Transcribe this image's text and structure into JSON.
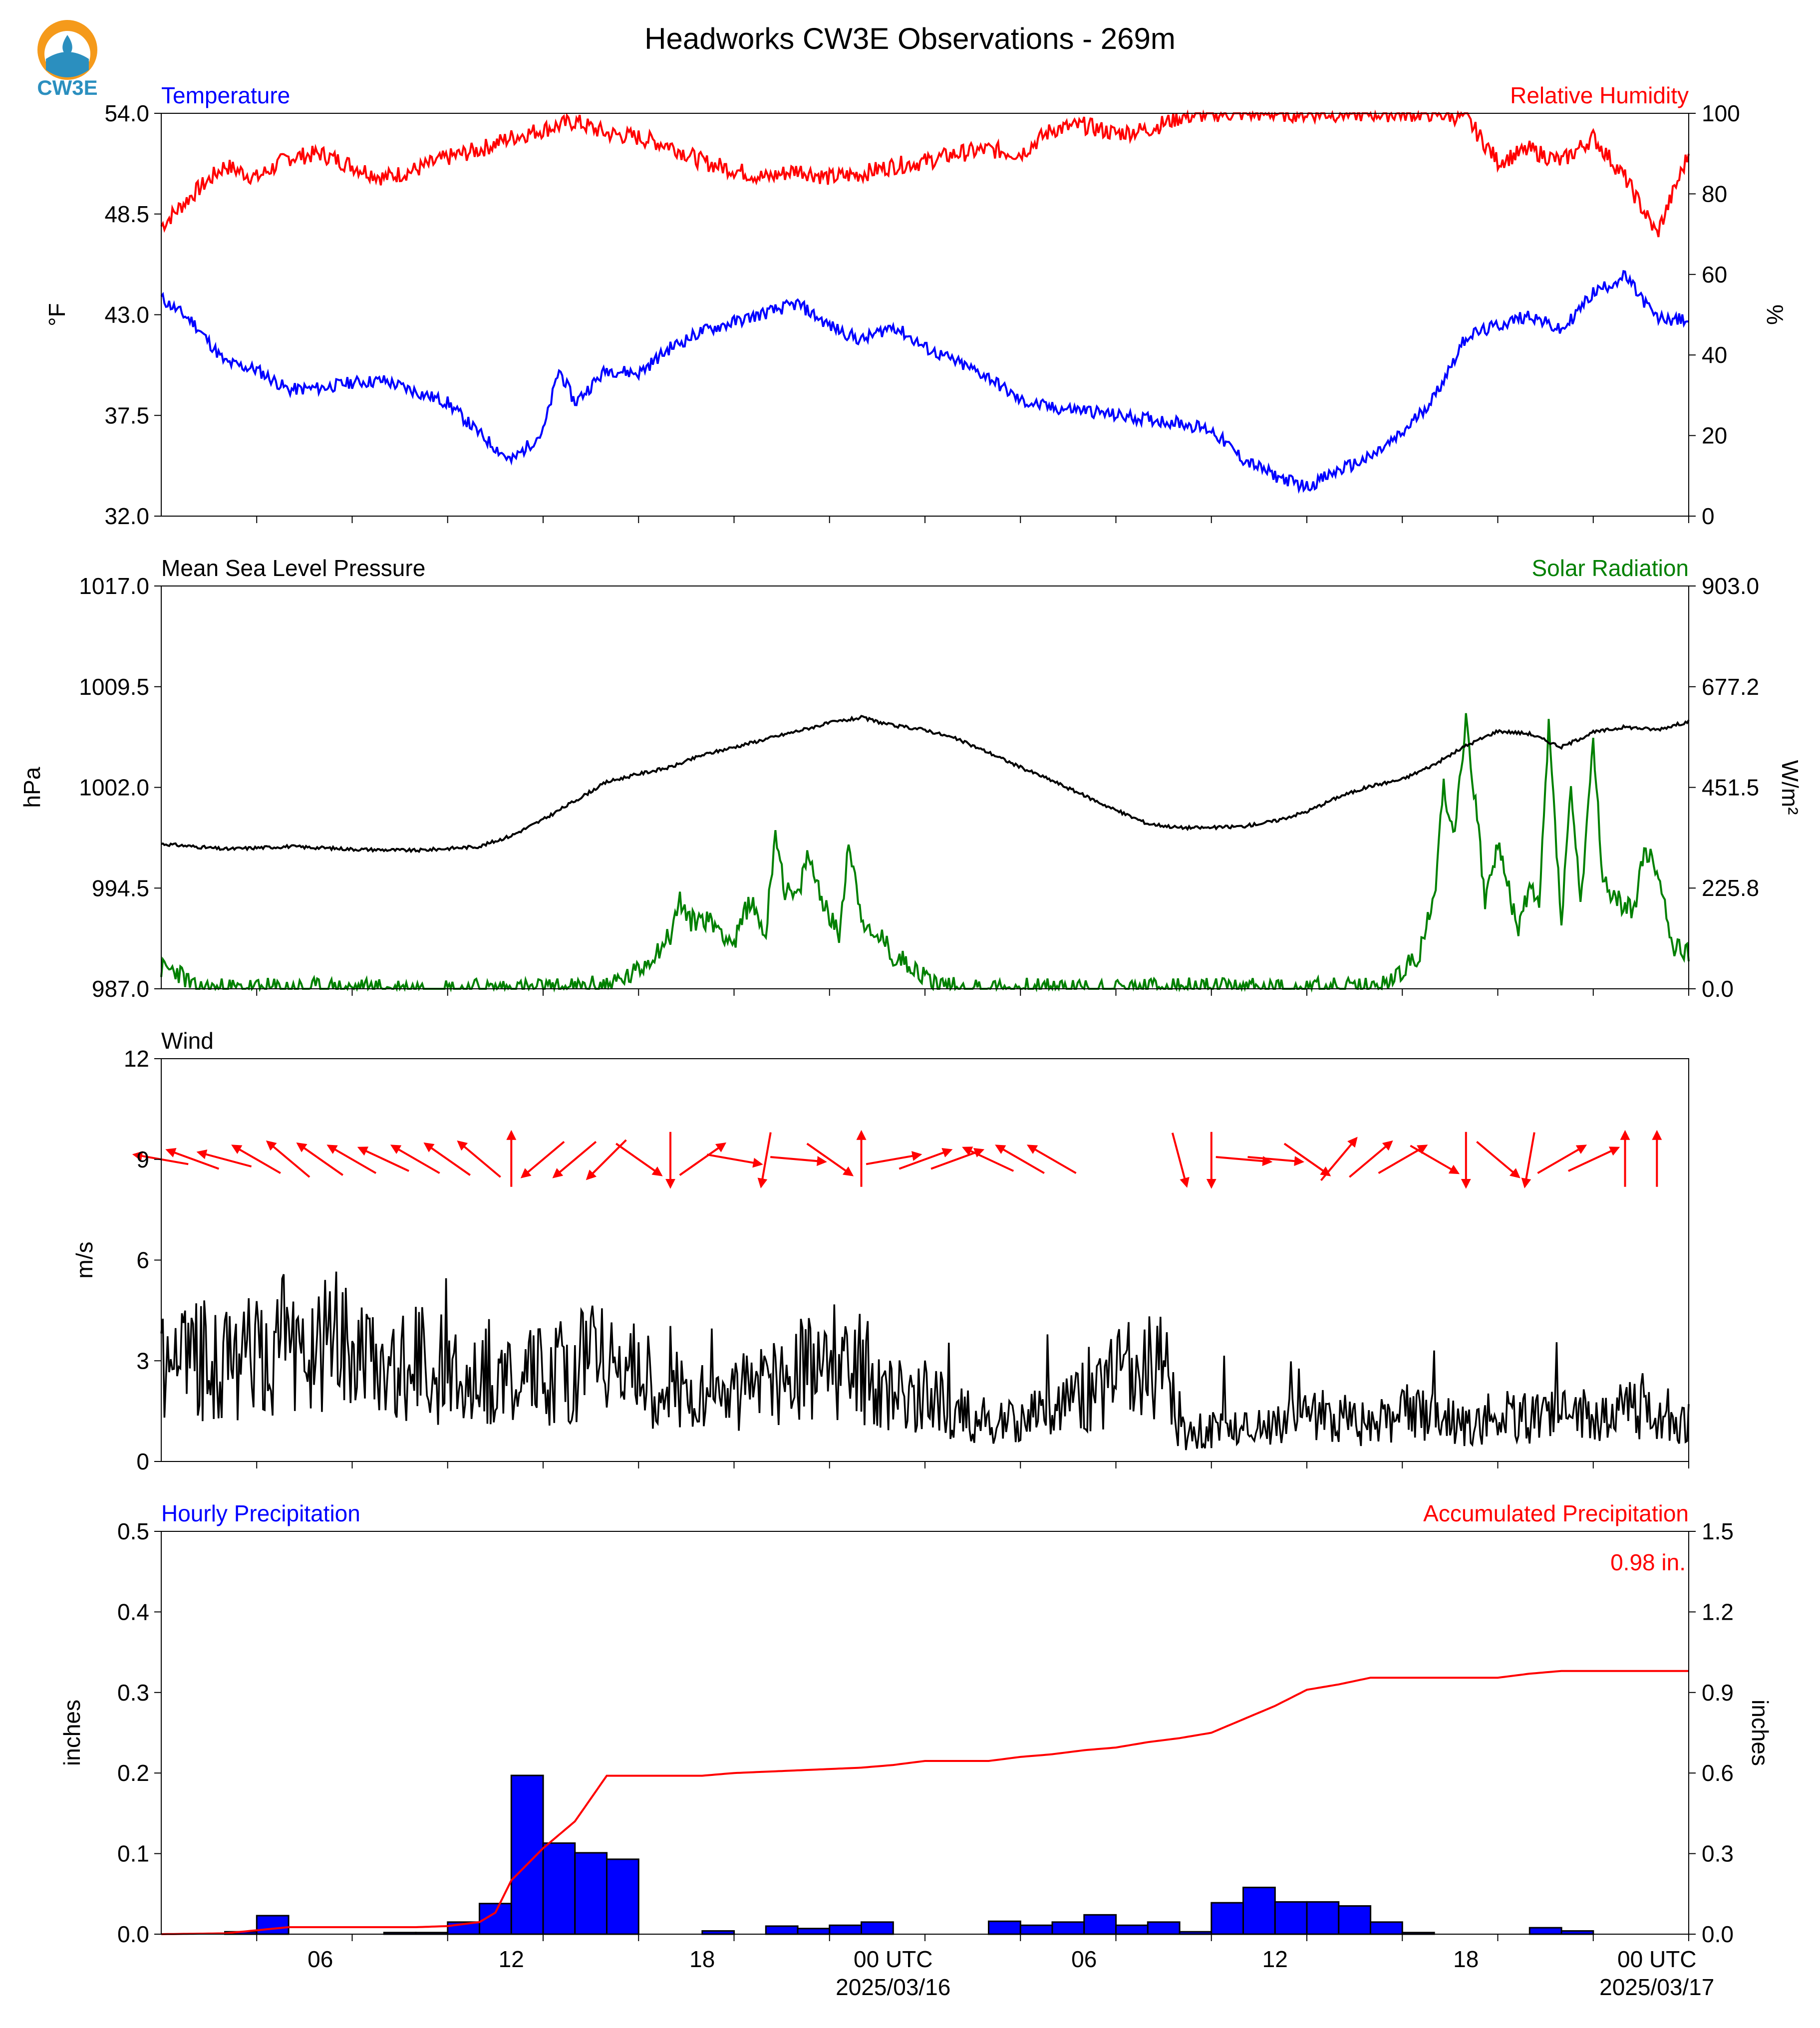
{
  "figure": {
    "title": "Headworks CW3E Observations - 269m",
    "logo_text": "CW3E"
  },
  "colors": {
    "temperature": "#0000ff",
    "humidity": "#ff0000",
    "pressure": "#000000",
    "solar": "#008000",
    "wind_speed": "#000000",
    "wind_arrows": "#ff0000",
    "hourly_bars": "#0000ff",
    "accum_line": "#ff0000",
    "logo_orange": "#f59a1b",
    "logo_blue": "#2b8fbf"
  },
  "time_axis": {
    "range_hours": [
      0,
      48
    ],
    "ticks": [
      3,
      6,
      9,
      12,
      15,
      18,
      21,
      24,
      27,
      30,
      33,
      36,
      39,
      42,
      45,
      48
    ],
    "labels": [
      {
        "hour": 5,
        "text": "06"
      },
      {
        "hour": 11,
        "text": "12"
      },
      {
        "hour": 17,
        "text": "18"
      },
      {
        "hour": 23,
        "text": "00 UTC",
        "sub": "2025/03/16"
      },
      {
        "hour": 29,
        "text": "06"
      },
      {
        "hour": 35,
        "text": "12"
      },
      {
        "hour": 41,
        "text": "18"
      },
      {
        "hour": 47,
        "text": "00 UTC",
        "sub": "2025/03/17"
      }
    ]
  },
  "panels": {
    "temp_rh": {
      "left_title": "Temperature",
      "right_title": "Relative Humidity",
      "ylabel_left": "°F",
      "ylabel_right": "%",
      "yticks_left": [
        "32.0",
        "37.5",
        "43.0",
        "48.5",
        "54.0"
      ],
      "yticks_right": [
        "0",
        "20",
        "40",
        "60",
        "80",
        "100"
      ]
    },
    "pres_solar": {
      "left_title": "Mean Sea Level Pressure",
      "right_title": "Solar Radiation",
      "ylabel_left": "hPa",
      "ylabel_right": "W/m²",
      "yticks_left": [
        "987.0",
        "994.5",
        "1002.0",
        "1009.5",
        "1017.0"
      ],
      "yticks_right": [
        "0.0",
        "225.8",
        "451.5",
        "677.2",
        "903.0"
      ]
    },
    "wind": {
      "left_title": "Wind",
      "ylabel_left": "m/s",
      "yticks_left": [
        "0",
        "3",
        "6",
        "9",
        "12"
      ]
    },
    "precip": {
      "left_title": "Hourly Precipitation",
      "right_title": "Accumulated Precipitation",
      "ylabel_left": "inches",
      "ylabel_right": "inches",
      "yticks_left": [
        "0.0",
        "0.1",
        "0.2",
        "0.3",
        "0.4",
        "0.5"
      ],
      "yticks_right": [
        "0.0",
        "0.3",
        "0.6",
        "0.9",
        "1.2",
        "1.5"
      ],
      "total_label": "0.98 in."
    }
  },
  "chart_data": [
    {
      "type": "line",
      "title": "Temperature",
      "ylabel": "°F",
      "ylim": [
        32.0,
        54.0
      ],
      "xlim_hours": [
        0,
        48
      ],
      "series": [
        {
          "name": "Temperature",
          "x": [
            0,
            1,
            2,
            3,
            4,
            5,
            6,
            7,
            8,
            9,
            10,
            11,
            12,
            12.5,
            13,
            14,
            15,
            16,
            17,
            18,
            19,
            20,
            21,
            22,
            23,
            24,
            25,
            26,
            27,
            28,
            29,
            30,
            31,
            32,
            33,
            34,
            35,
            36,
            37,
            38,
            39,
            40,
            41,
            42,
            43,
            44,
            45,
            46,
            47,
            48
          ],
          "values": [
            43.9,
            42.6,
            40.4,
            40.0,
            38.9,
            39.0,
            39.3,
            39.4,
            38.8,
            38.2,
            36.5,
            35.0,
            36.6,
            40.0,
            38.2,
            40.0,
            39.8,
            41.2,
            42.1,
            42.6,
            43.1,
            43.6,
            42.4,
            41.6,
            42.4,
            41.2,
            40.4,
            39.6,
            38.3,
            37.9,
            37.8,
            37.5,
            37.3,
            37.1,
            36.7,
            35.1,
            34.2,
            33.6,
            34.5,
            35.2,
            36.5,
            38.5,
            41.8,
            42.4,
            43.0,
            42.1,
            44.2,
            45.1,
            42.8,
            42.7
          ]
        }
      ]
    },
    {
      "type": "line",
      "title": "Relative Humidity",
      "ylabel": "%",
      "ylim": [
        0,
        100
      ],
      "xlim_hours": [
        0,
        48
      ],
      "series": [
        {
          "name": "Relative Humidity",
          "x": [
            0,
            1,
            2,
            3,
            4,
            5,
            6,
            7,
            8,
            9,
            10,
            11,
            12,
            13,
            14,
            15,
            16,
            17,
            18,
            19,
            20,
            21,
            22,
            23,
            24,
            25,
            26,
            27,
            28,
            29,
            30,
            31,
            32,
            33,
            34,
            35,
            36,
            37,
            38,
            39,
            40,
            41,
            42,
            43,
            44,
            45,
            46,
            47,
            48
          ],
          "values": [
            72,
            80,
            87,
            84,
            89,
            90,
            87,
            84,
            86,
            89,
            91,
            94,
            96,
            98,
            95,
            94,
            92,
            88,
            86,
            84,
            86,
            84,
            85,
            87,
            88,
            90,
            91,
            90,
            96,
            97,
            95,
            96,
            99,
            100,
            100,
            100,
            100,
            100,
            100,
            100,
            100,
            99,
            88,
            91,
            88,
            94,
            84,
            70,
            90
          ]
        }
      ]
    },
    {
      "type": "line",
      "title": "Mean Sea Level Pressure",
      "ylabel": "hPa",
      "ylim": [
        987.0,
        1017.0
      ],
      "xlim_hours": [
        0,
        48
      ],
      "series": [
        {
          "name": "Mean Sea Level Pressure",
          "x": [
            0,
            2,
            4,
            6,
            8,
            10,
            11,
            12,
            13,
            14,
            15,
            16,
            17,
            18,
            19,
            20,
            21,
            22,
            23,
            24,
            25,
            26,
            27,
            28,
            29,
            30,
            31,
            32,
            33,
            34,
            35,
            36,
            37,
            38,
            39,
            40,
            41,
            42,
            43,
            44,
            45,
            46,
            47,
            48
          ],
          "values": [
            997.8,
            997.4,
            997.6,
            997.4,
            997.3,
            997.6,
            998.4,
            999.6,
            1001.0,
            1002.4,
            1003.0,
            1003.5,
            1004.4,
            1005.0,
            1005.6,
            1006.2,
            1006.8,
            1007.2,
            1006.6,
            1006.3,
            1005.6,
            1004.6,
            1003.5,
            1002.5,
            1001.4,
            1000.3,
            999.3,
            999.0,
            999.0,
            999.1,
            999.5,
            1000.2,
            1001.3,
            1002.1,
            1002.6,
            1003.7,
            1005.1,
            1006.2,
            1006.0,
            1005.0,
            1006.1,
            1006.5,
            1006.3,
            1006.9
          ]
        }
      ]
    },
    {
      "type": "line",
      "title": "Solar Radiation",
      "ylabel": "W/m²",
      "ylim": [
        0.0,
        903.0
      ],
      "xlim_hours": [
        0,
        48
      ],
      "series": [
        {
          "name": "Solar Radiation",
          "x": [
            0,
            0.5,
            0.8,
            1,
            13,
            14,
            14.5,
            15,
            15.5,
            16,
            16.3,
            16.6,
            17,
            17.5,
            18,
            18.5,
            19,
            19.3,
            19.6,
            20,
            20.3,
            20.6,
            21,
            21.3,
            21.6,
            22,
            22.3,
            22.6,
            23,
            23.5,
            24,
            24.5,
            25,
            26,
            38,
            38.5,
            39,
            39.5,
            40,
            40.3,
            40.6,
            41,
            41.3,
            41.6,
            42,
            42.3,
            42.6,
            43,
            43.3,
            43.6,
            44,
            44.3,
            44.6,
            45,
            45.3,
            45.6,
            46,
            46.3,
            46.6,
            47,
            47.5,
            48
          ],
          "values": [
            45,
            40,
            20,
            0,
            0,
            10,
            20,
            40,
            80,
            120,
            200,
            150,
            160,
            140,
            100,
            200,
            120,
            360,
            220,
            200,
            300,
            240,
            160,
            120,
            330,
            170,
            110,
            120,
            70,
            60,
            25,
            10,
            0,
            0,
            0,
            10,
            40,
            70,
            200,
            460,
            340,
            600,
            420,
            200,
            320,
            240,
            130,
            230,
            180,
            590,
            150,
            450,
            190,
            540,
            250,
            200,
            190,
            180,
            310,
            270,
            100,
            80
          ]
        }
      ]
    },
    {
      "type": "line",
      "title": "Wind",
      "ylabel": "m/s",
      "ylim": [
        0,
        12
      ],
      "xlim_hours": [
        0,
        48
      ],
      "series": [
        {
          "name": "Wind speed",
          "x": [
            0,
            1,
            2,
            3,
            4,
            5,
            6,
            7,
            8,
            9,
            10,
            11,
            12,
            13,
            14,
            15,
            16,
            17,
            18,
            19,
            20,
            21,
            22,
            23,
            24,
            25,
            26,
            27,
            28,
            29,
            30,
            31,
            31.5,
            32,
            33,
            34,
            35,
            36,
            37,
            38,
            39,
            40,
            41,
            42,
            43,
            44,
            45,
            46,
            47,
            48
          ],
          "values": [
            2.8,
            3.0,
            2.6,
            3.2,
            3.3,
            3.4,
            3.0,
            2.6,
            2.8,
            2.5,
            2.6,
            2.3,
            2.4,
            2.6,
            2.8,
            2.4,
            2.0,
            1.8,
            1.8,
            2.3,
            2.5,
            2.8,
            2.6,
            2.0,
            1.8,
            1.4,
            1.2,
            1.0,
            1.6,
            2.0,
            2.4,
            2.6,
            2.7,
            0.8,
            0.9,
            1.0,
            1.1,
            1.3,
            1.2,
            1.0,
            1.4,
            1.2,
            1.0,
            1.3,
            1.2,
            1.4,
            1.3,
            1.5,
            1.2,
            1.0
          ]
        },
        {
          "name": "Wind direction (hourly arrows, direction toward, degrees clockwise from north)",
          "x": [
            0,
            1,
            2,
            3,
            4,
            5,
            6,
            7,
            8,
            9,
            10,
            11,
            12,
            13,
            14,
            15,
            16,
            17,
            18,
            19,
            20,
            21,
            22,
            23,
            24,
            25,
            26,
            27,
            28,
            29,
            30,
            31,
            32,
            33,
            34,
            35,
            36,
            37,
            38,
            39,
            40,
            41,
            42,
            43,
            44,
            45,
            46,
            47,
            48
          ],
          "values": [
            280,
            290,
            285,
            300,
            310,
            305,
            300,
            295,
            300,
            305,
            310,
            0,
            230,
            230,
            225,
            125,
            180,
            55,
            100,
            190,
            95,
            125,
            0,
            80,
            70,
            70,
            295,
            300,
            300,
            null,
            null,
            null,
            165,
            180,
            95,
            95,
            125,
            40,
            50,
            60,
            120,
            180,
            130,
            190,
            60,
            65,
            0,
            0,
            null
          ]
        }
      ]
    },
    {
      "type": "bar",
      "title": "Hourly Precipitation",
      "ylabel": "inches",
      "ylim": [
        0,
        0.5
      ],
      "categories_hours": [
        2,
        3,
        7,
        8,
        9,
        10,
        11,
        12,
        13,
        14,
        17,
        19,
        20,
        21,
        22,
        26,
        27,
        28,
        29,
        30,
        31,
        32,
        33,
        34,
        35,
        36,
        37,
        38,
        39,
        43,
        44
      ],
      "values": [
        0.003,
        0.023,
        0.002,
        0.002,
        0.015,
        0.038,
        0.197,
        0.113,
        0.101,
        0.093,
        0.004,
        0.01,
        0.007,
        0.011,
        0.015,
        0.016,
        0.011,
        0.015,
        0.024,
        0.011,
        0.015,
        0.003,
        0.039,
        0.058,
        0.04,
        0.04,
        0.035,
        0.015,
        0.002,
        0.008,
        0.004
      ]
    },
    {
      "type": "line",
      "title": "Accumulated Precipitation",
      "ylabel": "inches",
      "ylim": [
        0,
        1.5
      ],
      "series": [
        {
          "name": "Accumulated Precipitation",
          "x": [
            0,
            2,
            4,
            8,
            9,
            10,
            10.5,
            11,
            12,
            13,
            14,
            17,
            18,
            20,
            22,
            23,
            24,
            26,
            27,
            28,
            29,
            30,
            31,
            32,
            33,
            34,
            35,
            35.5,
            36,
            37,
            38,
            40,
            42,
            43,
            44,
            48
          ],
          "values": [
            0,
            0.003,
            0.026,
            0.026,
            0.03,
            0.045,
            0.08,
            0.2,
            0.32,
            0.42,
            0.59,
            0.59,
            0.6,
            0.61,
            0.62,
            0.63,
            0.645,
            0.645,
            0.66,
            0.67,
            0.685,
            0.695,
            0.715,
            0.73,
            0.75,
            0.8,
            0.85,
            0.88,
            0.91,
            0.93,
            0.955,
            0.955,
            0.955,
            0.97,
            0.98,
            0.98
          ]
        }
      ]
    }
  ]
}
